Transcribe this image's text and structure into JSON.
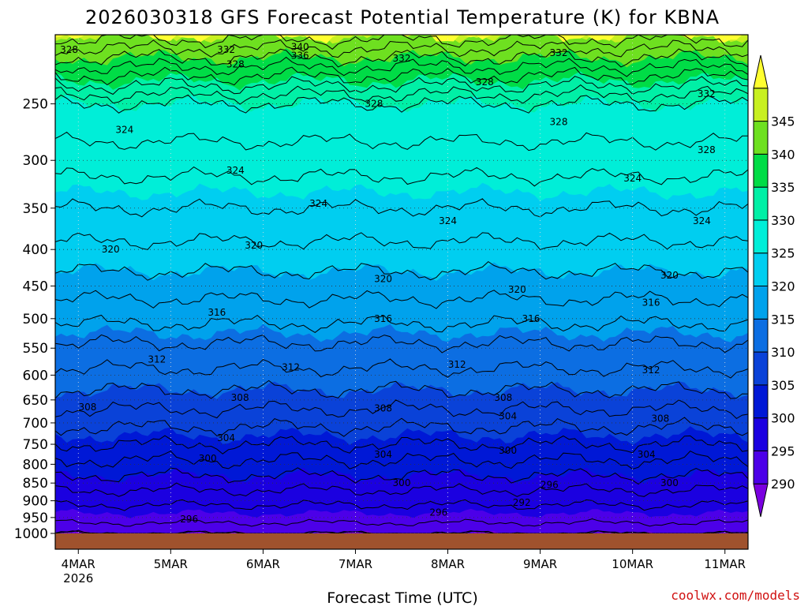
{
  "chart_data": {
    "type": "heatmap",
    "title": "2026030318 GFS Forecast Potential Temperature (K) for KBNA",
    "xlabel": "Forecast Time (UTC)",
    "ylabel": "",
    "x_ticks": [
      "4MAR",
      "5MAR",
      "6MAR",
      "7MAR",
      "8MAR",
      "9MAR",
      "10MAR",
      "11MAR"
    ],
    "x_tick_year": "2026",
    "x_range_days": [
      -0.25,
      7.25
    ],
    "y_ticks": [
      250,
      300,
      350,
      400,
      450,
      500,
      550,
      600,
      650,
      700,
      750,
      800,
      850,
      900,
      950,
      1000
    ],
    "y_range_hpa": [
      200,
      1000
    ],
    "y_scale": "log",
    "y_reversed": true,
    "grid": "dotted",
    "colorbar_levels": [
      285,
      290,
      295,
      300,
      305,
      310,
      315,
      320,
      325,
      330,
      335,
      340,
      345,
      350
    ],
    "colorbar_labels": [
      "290",
      "295",
      "300",
      "305",
      "310",
      "315",
      "320",
      "325",
      "330",
      "335",
      "340",
      "345"
    ],
    "colorbar_colors": [
      "#7a00e0",
      "#4c00e8",
      "#1b00e0",
      "#0018d6",
      "#0a42d8",
      "#0c6ee2",
      "#00a2ec",
      "#00cef0",
      "#00eed8",
      "#00f0a6",
      "#00dc46",
      "#6ee020",
      "#c8f020",
      "#ffff30"
    ],
    "ground_color": "#a0522d",
    "contour_interval_K": 2,
    "profile": [
      {
        "p": 200,
        "theta": 345
      },
      {
        "p": 250,
        "theta": 330
      },
      {
        "p": 300,
        "theta": 327
      },
      {
        "p": 350,
        "theta": 324
      },
      {
        "p": 400,
        "theta": 321.5
      },
      {
        "p": 450,
        "theta": 319
      },
      {
        "p": 500,
        "theta": 316.5
      },
      {
        "p": 550,
        "theta": 313.5
      },
      {
        "p": 600,
        "theta": 311.5
      },
      {
        "p": 650,
        "theta": 309
      },
      {
        "p": 700,
        "theta": 306.5
      },
      {
        "p": 750,
        "theta": 304
      },
      {
        "p": 800,
        "theta": 301.5
      },
      {
        "p": 850,
        "theta": 299
      },
      {
        "p": 900,
        "theta": 296.5
      },
      {
        "p": 950,
        "theta": 294.5
      },
      {
        "p": 1000,
        "theta": 293
      }
    ],
    "contour_labels": [
      {
        "text": "328",
        "day": -0.1,
        "p": 210
      },
      {
        "text": "332",
        "day": 1.6,
        "p": 210
      },
      {
        "text": "340",
        "day": 2.4,
        "p": 208
      },
      {
        "text": "336",
        "day": 2.4,
        "p": 214
      },
      {
        "text": "332",
        "day": 3.5,
        "p": 216
      },
      {
        "text": "332",
        "day": 5.2,
        "p": 212
      },
      {
        "text": "328",
        "day": 1.7,
        "p": 220
      },
      {
        "text": "328",
        "day": 4.4,
        "p": 233
      },
      {
        "text": "328",
        "day": 3.2,
        "p": 250
      },
      {
        "text": "328",
        "day": 5.2,
        "p": 265
      },
      {
        "text": "332",
        "day": 6.8,
        "p": 242
      },
      {
        "text": "328",
        "day": 6.8,
        "p": 290
      },
      {
        "text": "324",
        "day": 0.5,
        "p": 272
      },
      {
        "text": "324",
        "day": 1.7,
        "p": 310
      },
      {
        "text": "324",
        "day": 2.6,
        "p": 345
      },
      {
        "text": "324",
        "day": 4.0,
        "p": 365
      },
      {
        "text": "324",
        "day": 6.0,
        "p": 318
      },
      {
        "text": "324",
        "day": 6.75,
        "p": 365
      },
      {
        "text": "320",
        "day": 0.35,
        "p": 400
      },
      {
        "text": "320",
        "day": 1.9,
        "p": 395
      },
      {
        "text": "320",
        "day": 3.3,
        "p": 440
      },
      {
        "text": "320",
        "day": 4.75,
        "p": 455
      },
      {
        "text": "320",
        "day": 6.4,
        "p": 435
      },
      {
        "text": "316",
        "day": 1.5,
        "p": 490
      },
      {
        "text": "316",
        "day": 3.3,
        "p": 500
      },
      {
        "text": "316",
        "day": 4.9,
        "p": 500
      },
      {
        "text": "316",
        "day": 6.2,
        "p": 475
      },
      {
        "text": "312",
        "day": 0.85,
        "p": 570
      },
      {
        "text": "312",
        "day": 2.3,
        "p": 585
      },
      {
        "text": "312",
        "day": 4.1,
        "p": 580
      },
      {
        "text": "312",
        "day": 6.2,
        "p": 590
      },
      {
        "text": "308",
        "day": 0.1,
        "p": 665
      },
      {
        "text": "308",
        "day": 1.75,
        "p": 645
      },
      {
        "text": "308",
        "day": 3.3,
        "p": 668
      },
      {
        "text": "308",
        "day": 4.6,
        "p": 645
      },
      {
        "text": "308",
        "day": 6.3,
        "p": 690
      },
      {
        "text": "304",
        "day": 1.6,
        "p": 735
      },
      {
        "text": "304",
        "day": 3.3,
        "p": 775
      },
      {
        "text": "304",
        "day": 4.65,
        "p": 685
      },
      {
        "text": "304",
        "day": 6.15,
        "p": 775
      },
      {
        "text": "300",
        "day": 1.4,
        "p": 785
      },
      {
        "text": "300",
        "day": 3.5,
        "p": 850
      },
      {
        "text": "300",
        "day": 4.65,
        "p": 765
      },
      {
        "text": "300",
        "day": 6.4,
        "p": 850
      },
      {
        "text": "296",
        "day": 5.1,
        "p": 855
      },
      {
        "text": "296",
        "day": 1.2,
        "p": 955
      },
      {
        "text": "296",
        "day": 3.9,
        "p": 935
      },
      {
        "text": "292",
        "day": 4.8,
        "p": 905
      }
    ]
  },
  "credit": "coolwx.com/models"
}
